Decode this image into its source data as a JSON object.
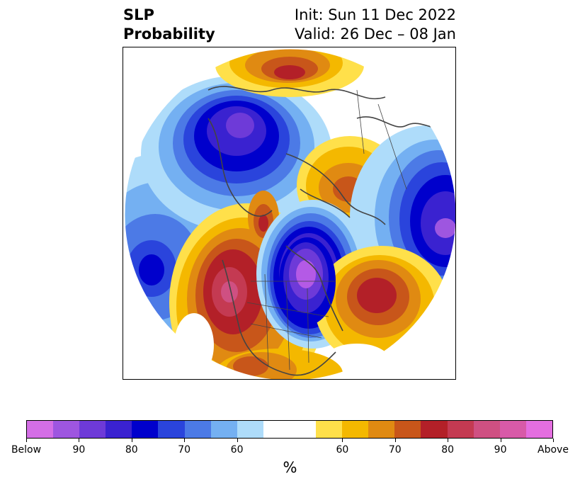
{
  "title": {
    "left_line1": "SLP",
    "left_line2": "Probability",
    "right_line1": "Init: Sun 11 Dec 2022",
    "right_line2": "Valid: 26 Dec – 08 Jan"
  },
  "map": {
    "projection": "north-polar-stereographic",
    "field": "SLP probability",
    "below_center_color": "#b45ae6",
    "above_center_color": "#b32028",
    "coastline_color": "#444444"
  },
  "colorbar": {
    "colors": [
      "#d46ee6",
      "#9e56e0",
      "#6e3ad8",
      "#3a22d0",
      "#0000cc",
      "#2a44dc",
      "#4c7ae6",
      "#74b0f2",
      "#aedcfa",
      "#ffffff",
      "#ffffff",
      "#ffe04a",
      "#f4b800",
      "#e08a12",
      "#c8561a",
      "#b32028",
      "#c43a52",
      "#cf5082",
      "#d85aa8",
      "#e46ee0"
    ],
    "tick_labels": [
      "Below",
      "90",
      "80",
      "70",
      "60",
      "60",
      "70",
      "80",
      "90",
      "Above"
    ],
    "unit": "%"
  }
}
